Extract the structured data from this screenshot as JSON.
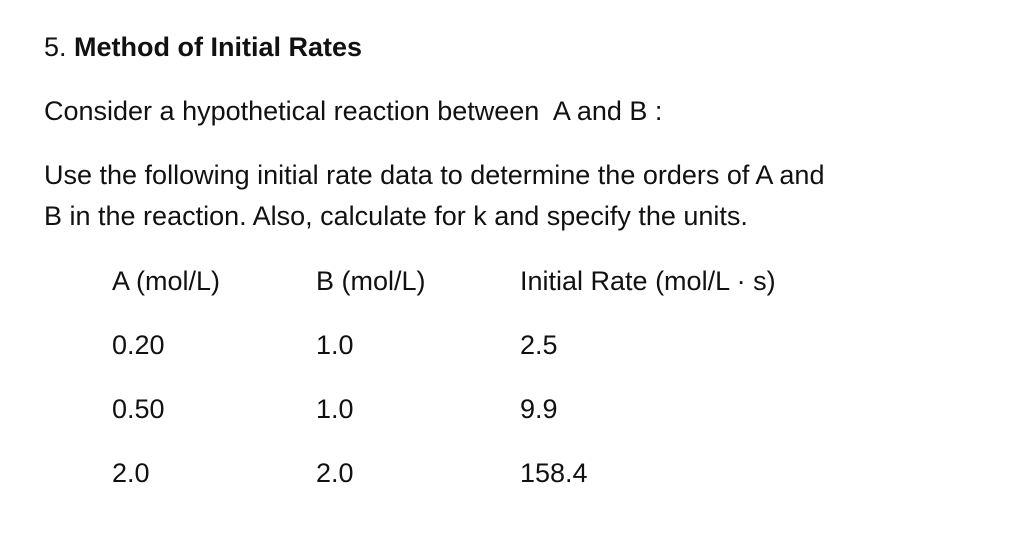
{
  "heading": {
    "number": "5.",
    "title": "Method of Initial Rates"
  },
  "intro": "Consider a hypothetical reaction between  A and B :",
  "instructions": [
    "Use the following initial rate data to determine the orders of A and",
    "B in the reaction. Also, calculate for k and specify the units."
  ],
  "table": {
    "headers": [
      "A (mol/L)",
      "B (mol/L)",
      "Initial Rate (mol/L · s)"
    ],
    "rows": [
      [
        "0.20",
        "1.0",
        "2.5"
      ],
      [
        "0.50",
        "1.0",
        "9.9"
      ],
      [
        "2.0",
        "2.0",
        "158.4"
      ]
    ]
  }
}
